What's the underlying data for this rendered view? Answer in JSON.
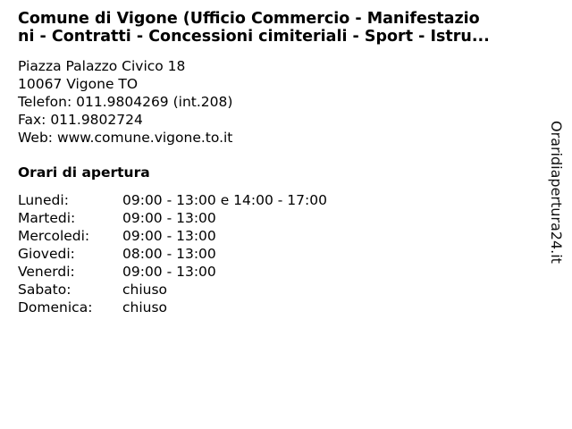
{
  "title": "Comune di Vigone (Ufficio Commercio - Manifestazio ni - Contratti - Concessioni cimiteriali - Sport - Istru...",
  "title_lines": [
    "Comune di Vigone (Ufficio Commercio - Manifestazio",
    "ni - Contratti - Concessioni cimiteriali - Sport - Istru..."
  ],
  "address": {
    "street": "Piazza Palazzo Civico 18",
    "city": "10067 Vigone TO",
    "phone": "Telefon: 011.9804269 (int.208)",
    "fax": "Fax: 011.9802724",
    "web": "Web: www.comune.vigone.to.it"
  },
  "hours_heading": "Orari di apertura",
  "hours": [
    {
      "day": "Lunedi:",
      "time": "09:00 - 13:00 e 14:00 - 17:00"
    },
    {
      "day": "Martedi:",
      "time": "09:00 - 13:00"
    },
    {
      "day": "Mercoledi:",
      "time": "09:00 - 13:00"
    },
    {
      "day": "Giovedi:",
      "time": "08:00 - 13:00"
    },
    {
      "day": "Venerdi:",
      "time": "09:00 - 13:00"
    },
    {
      "day": "Sabato:",
      "time": "chiuso"
    },
    {
      "day": "Domenica:",
      "time": "chiuso"
    }
  ],
  "watermark": "Oraridiapertura24.it"
}
